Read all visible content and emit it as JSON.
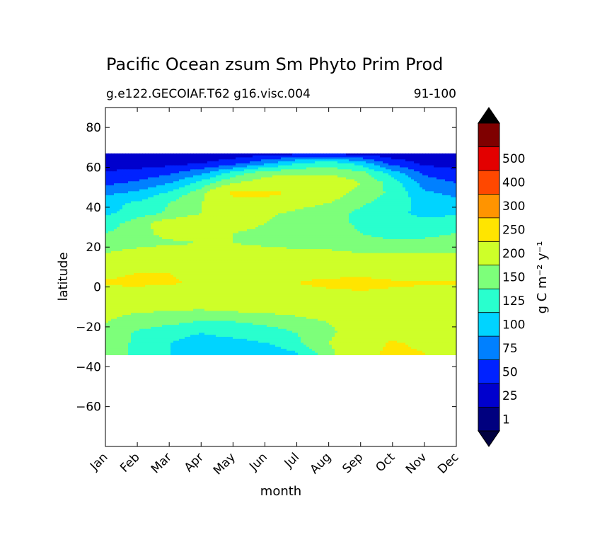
{
  "chart_data": {
    "type": "heatmap",
    "title": "Pacific Ocean zsum Sm Phyto Prim Prod",
    "subtitle_left": "g.e122.GECOIAF.T62 g16.visc.004",
    "subtitle_right": "91-100",
    "xlabel": "month",
    "ylabel": "latitude",
    "x_ticks": [
      "Jan",
      "Feb",
      "Mar",
      "Apr",
      "May",
      "Jun",
      "Jul",
      "Aug",
      "Sep",
      "Oct",
      "Nov",
      "Dec"
    ],
    "y_ticks": [
      80,
      60,
      40,
      20,
      0,
      -20,
      -40,
      -60
    ],
    "y_tick_labels": [
      "80",
      "60",
      "40",
      "20",
      "0",
      "−20",
      "−40",
      "−60"
    ],
    "ylim": [
      -80,
      90
    ],
    "data_lat_range": [
      -34,
      67
    ],
    "colorbar": {
      "label": "g C m⁻² y⁻¹",
      "levels": [
        0,
        1,
        25,
        50,
        75,
        100,
        125,
        150,
        200,
        250,
        300,
        400,
        500,
        600
      ],
      "tick_labels": [
        "1",
        "25",
        "50",
        "75",
        "100",
        "125",
        "150",
        "200",
        "250",
        "300",
        "400",
        "500"
      ],
      "colors": [
        "#00007f",
        "#0000cd",
        "#0022ff",
        "#0080ff",
        "#00d4ff",
        "#29ffce",
        "#7dff7a",
        "#ceff29",
        "#ffe500",
        "#ff9400",
        "#ff4800",
        "#e30000",
        "#7f0000"
      ],
      "extend_low_color": "#000040",
      "extend_high_color": "#000000"
    },
    "latitudes": [
      67,
      62,
      57,
      52,
      47,
      42,
      37,
      32,
      27,
      22,
      17,
      12,
      7,
      2,
      -3,
      -8,
      -13,
      -18,
      -23,
      -28,
      -33
    ],
    "values": [
      [
        8,
        8,
        6,
        6,
        8,
        12,
        18,
        20,
        14,
        8,
        6,
        6
      ],
      [
        12,
        14,
        18,
        24,
        40,
        70,
        100,
        115,
        90,
        40,
        20,
        14
      ],
      [
        28,
        34,
        45,
        70,
        110,
        140,
        145,
        145,
        135,
        90,
        45,
        32
      ],
      [
        45,
        55,
        75,
        110,
        150,
        165,
        185,
        175,
        150,
        115,
        65,
        50
      ],
      [
        70,
        80,
        105,
        140,
        210,
        215,
        190,
        165,
        140,
        120,
        80,
        68
      ],
      [
        90,
        105,
        125,
        150,
        180,
        175,
        160,
        150,
        128,
        115,
        90,
        85
      ],
      [
        95,
        110,
        130,
        150,
        160,
        155,
        145,
        135,
        120,
        105,
        95,
        95
      ],
      [
        110,
        140,
        165,
        170,
        160,
        150,
        140,
        135,
        120,
        110,
        105,
        115
      ],
      [
        125,
        140,
        160,
        160,
        150,
        145,
        140,
        140,
        125,
        115,
        115,
        125
      ],
      [
        135,
        140,
        145,
        150,
        150,
        145,
        140,
        140,
        135,
        130,
        135,
        140
      ],
      [
        150,
        160,
        170,
        170,
        165,
        160,
        158,
        155,
        150,
        150,
        150,
        150
      ],
      [
        170,
        185,
        195,
        185,
        175,
        185,
        180,
        165,
        160,
        155,
        155,
        160
      ],
      [
        190,
        200,
        200,
        185,
        180,
        180,
        175,
        170,
        170,
        165,
        165,
        170
      ],
      [
        205,
        210,
        205,
        195,
        190,
        190,
        200,
        225,
        240,
        215,
        205,
        205
      ],
      [
        185,
        180,
        175,
        172,
        170,
        170,
        172,
        178,
        188,
        180,
        180,
        180
      ],
      [
        160,
        158,
        160,
        160,
        165,
        165,
        165,
        168,
        172,
        170,
        165,
        160
      ],
      [
        155,
        150,
        148,
        145,
        148,
        150,
        155,
        160,
        165,
        165,
        160,
        158
      ],
      [
        150,
        140,
        130,
        120,
        122,
        130,
        140,
        150,
        160,
        162,
        160,
        158
      ],
      [
        145,
        120,
        105,
        100,
        105,
        110,
        125,
        145,
        165,
        175,
        170,
        160
      ],
      [
        140,
        120,
        100,
        95,
        95,
        100,
        120,
        150,
        180,
        205,
        190,
        170
      ],
      [
        135,
        120,
        100,
        85,
        78,
        78,
        100,
        140,
        185,
        210,
        200,
        175
      ]
    ]
  }
}
